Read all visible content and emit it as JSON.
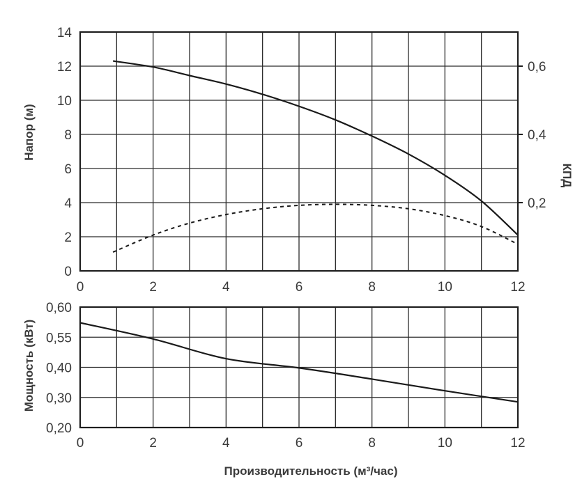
{
  "chart_data": [
    {
      "type": "line",
      "xlabel": "",
      "ylabel": "Напор (м)",
      "y2label": "КПД",
      "xlim": [
        0,
        12
      ],
      "ylim": [
        0,
        14
      ],
      "y2lim": [
        0,
        0.7
      ],
      "x_ticks": [
        "0",
        "2",
        "4",
        "6",
        "8",
        "10",
        "12"
      ],
      "y_ticks": [
        "0",
        "2",
        "4",
        "6",
        "8",
        "10",
        "12",
        "14"
      ],
      "y2_ticks": [
        "0,2",
        "0,4",
        "0,6"
      ],
      "grid": true,
      "series": [
        {
          "axis": "left",
          "style": "solid",
          "x": [
            0.9,
            2,
            3,
            4,
            5,
            6,
            7,
            8,
            9,
            10,
            11,
            12
          ],
          "y": [
            12.3,
            11.95,
            11.45,
            10.95,
            10.35,
            9.65,
            8.85,
            7.9,
            6.85,
            5.6,
            4.1,
            2.1
          ]
        },
        {
          "axis": "right",
          "style": "dashed",
          "x": [
            0.9,
            2,
            3,
            4,
            5,
            6,
            7,
            8,
            9,
            10,
            11,
            12
          ],
          "y": [
            0.055,
            0.105,
            0.14,
            0.165,
            0.182,
            0.192,
            0.195,
            0.192,
            0.182,
            0.162,
            0.13,
            0.078
          ]
        }
      ]
    },
    {
      "type": "line",
      "xlabel": "Производительность (м³/час)",
      "ylabel": "Мощность (кВт)",
      "xlim": [
        0,
        12
      ],
      "x_ticks": [
        "0",
        "2",
        "4",
        "6",
        "8",
        "10",
        "12"
      ],
      "y_ticks": [
        "0,20",
        "0,30",
        "0,40",
        "0,55",
        "0,60"
      ],
      "grid": true,
      "series": [
        {
          "x": [
            0,
            2,
            4,
            6,
            8,
            10,
            12
          ],
          "y": [
            0.574,
            0.541,
            0.443,
            0.398,
            0.361,
            0.322,
            0.285
          ]
        }
      ]
    }
  ]
}
